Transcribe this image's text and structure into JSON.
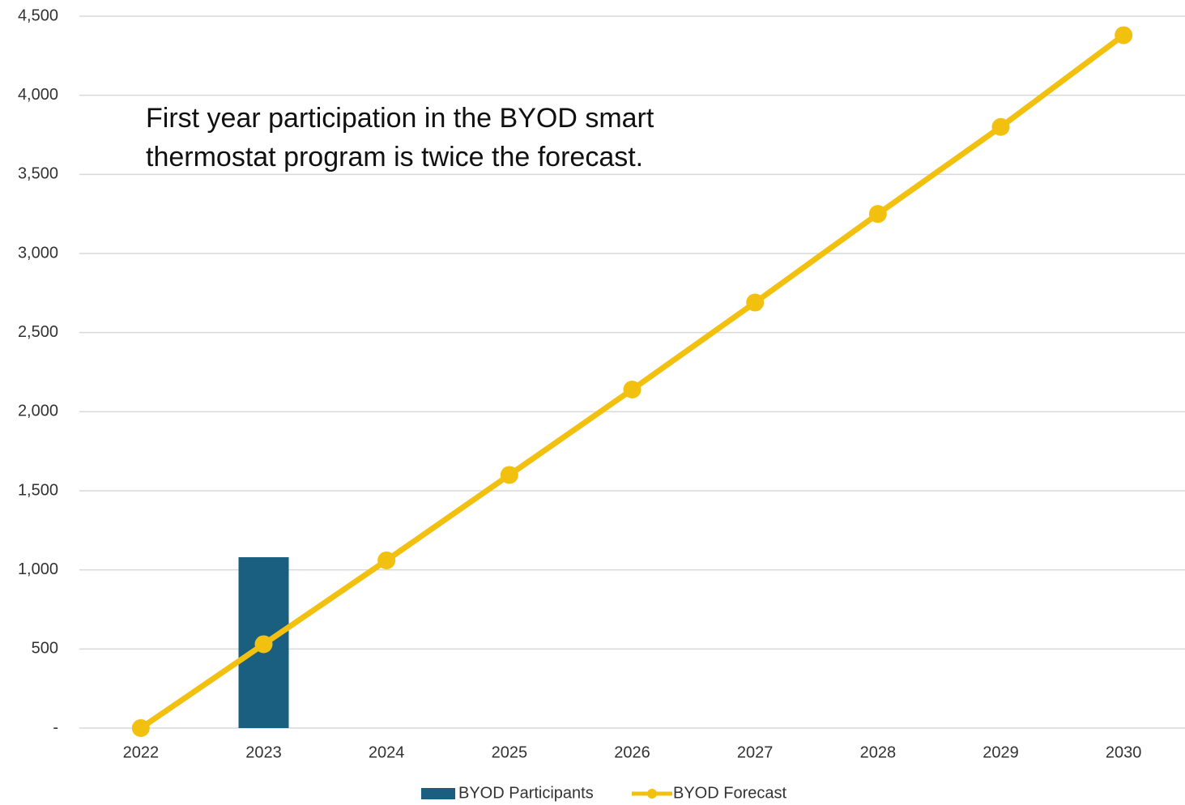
{
  "chart_data": {
    "type": "bar_line",
    "annotation": [
      "First year participation in the BYOD smart",
      "thermostat program is twice the forecast."
    ],
    "categories": [
      "2022",
      "2023",
      "2024",
      "2025",
      "2026",
      "2027",
      "2028",
      "2029",
      "2030"
    ],
    "series": [
      {
        "name": "BYOD Participants",
        "type": "bar",
        "color": "#1a5e80",
        "values": [
          null,
          1080,
          null,
          null,
          null,
          null,
          null,
          null,
          null
        ]
      },
      {
        "name": "BYOD Forecast",
        "type": "line",
        "color": "#f2c10f",
        "values": [
          0,
          530,
          1060,
          1600,
          2140,
          2690,
          3250,
          3800,
          4380
        ]
      }
    ],
    "ylim": [
      0,
      4500
    ],
    "yticks": [
      {
        "value": 0,
        "label": "-"
      },
      500,
      {
        "value": 1000,
        "label": "1,000"
      },
      {
        "value": 1500,
        "label": "1,500"
      },
      {
        "value": 2000,
        "label": "2,000"
      },
      {
        "value": 2500,
        "label": "2,500"
      },
      {
        "value": 3000,
        "label": "3,000"
      },
      {
        "value": 3500,
        "label": "3,500"
      },
      {
        "value": 4000,
        "label": "4,000"
      },
      {
        "value": 4500,
        "label": "4,500"
      }
    ],
    "grid": true,
    "legend": "bottom"
  }
}
